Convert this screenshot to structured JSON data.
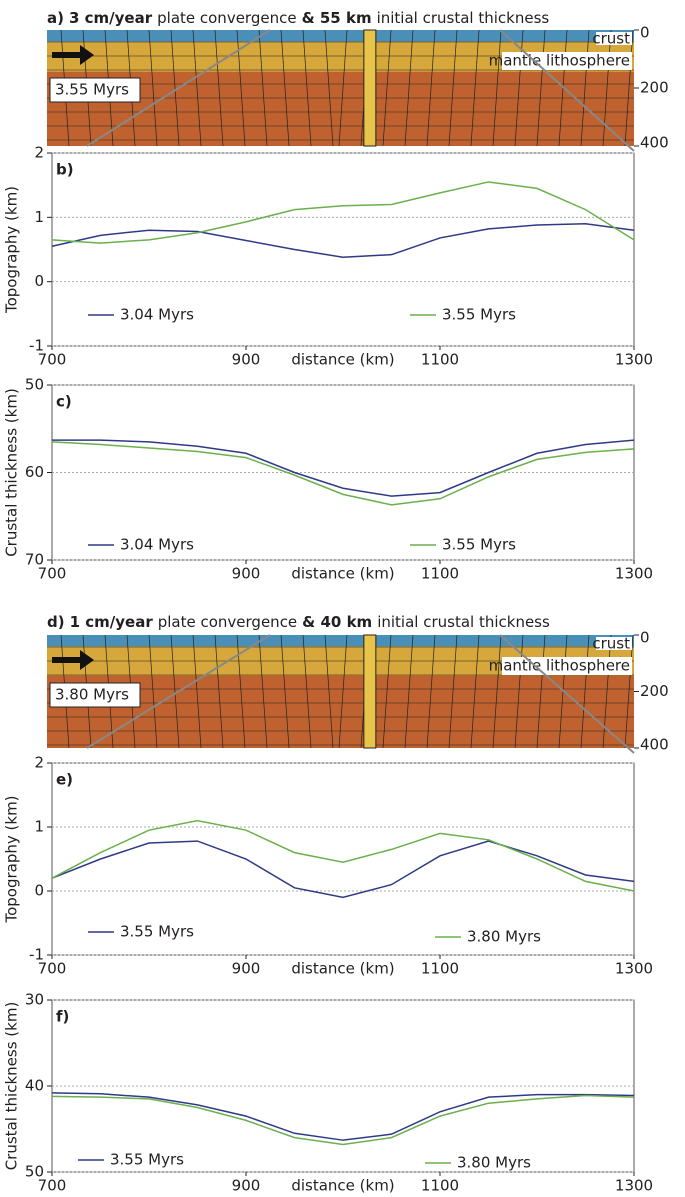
{
  "chart_data": [
    {
      "type": "section",
      "title": [
        "a)",
        "3 cm/year",
        "plate convergence",
        "& 55 km",
        "initial crustal thickness"
      ],
      "labels": [
        "crust",
        "mantle lithosphere"
      ],
      "time": "3.55 Myrs",
      "ylim": [
        0,
        400
      ],
      "yticks": [
        0,
        200,
        400
      ],
      "y_inverted": true
    },
    {
      "type": "line",
      "panel": "b)",
      "ylabel": "Topography (km)",
      "xlabel": "distance (km)",
      "x": [
        700,
        750,
        800,
        850,
        900,
        950,
        1000,
        1050,
        1100,
        1150,
        1200,
        1250,
        1300
      ],
      "series": [
        {
          "name": "3.04 Myrs",
          "color": "#2e3a87",
          "values": [
            0.55,
            0.72,
            0.8,
            0.78,
            0.64,
            0.5,
            0.38,
            0.42,
            0.68,
            0.82,
            0.88,
            0.9,
            0.8
          ]
        },
        {
          "name": "3.55 Myrs",
          "color": "#6ab04c",
          "values": [
            0.65,
            0.6,
            0.65,
            0.76,
            0.93,
            1.12,
            1.18,
            1.2,
            1.38,
            1.55,
            1.45,
            1.12,
            0.65
          ]
        }
      ],
      "xlim": [
        700,
        1300
      ],
      "xticks": [
        700,
        900,
        1100,
        1300
      ],
      "ylim": [
        -1,
        2
      ],
      "yticks": [
        -1,
        0,
        1,
        2
      ],
      "grid": true
    },
    {
      "type": "line",
      "panel": "c)",
      "ylabel": "Crustal thickness (km)",
      "xlabel": "distance (km)",
      "x": [
        700,
        750,
        800,
        850,
        900,
        950,
        1000,
        1050,
        1100,
        1150,
        1200,
        1250,
        1300
      ],
      "series": [
        {
          "name": "3.04 Myrs",
          "color": "#2e3a87",
          "values": [
            56.3,
            56.3,
            56.5,
            57,
            57.8,
            60,
            61.8,
            62.7,
            62.3,
            60,
            57.8,
            56.8,
            56.3
          ]
        },
        {
          "name": "3.55 Myrs",
          "color": "#6ab04c",
          "values": [
            56.5,
            56.8,
            57.2,
            57.6,
            58.3,
            60.3,
            62.5,
            63.7,
            63,
            60.5,
            58.5,
            57.7,
            57.3
          ]
        }
      ],
      "xlim": [
        700,
        1300
      ],
      "xticks": [
        700,
        900,
        1100,
        1300
      ],
      "ylim": [
        50,
        70
      ],
      "yticks": [
        50,
        60,
        70
      ],
      "y_inverted": true,
      "grid": true
    },
    {
      "type": "section",
      "title": [
        "d)",
        "1 cm/year",
        "plate convergence",
        "& 40 km",
        "initial crustal thickness"
      ],
      "labels": [
        "crust",
        "mantle lithosphere"
      ],
      "time": "3.80 Myrs",
      "ylim": [
        0,
        400
      ],
      "yticks": [
        0,
        200,
        400
      ],
      "y_inverted": true
    },
    {
      "type": "line",
      "panel": "e)",
      "ylabel": "Topography (km)",
      "xlabel": "distance (km)",
      "x": [
        700,
        750,
        800,
        850,
        900,
        950,
        1000,
        1050,
        1100,
        1150,
        1200,
        1250,
        1300
      ],
      "series": [
        {
          "name": "3.55 Myrs",
          "color": "#2e3a87",
          "values": [
            0.2,
            0.5,
            0.75,
            0.78,
            0.5,
            0.05,
            -0.1,
            0.1,
            0.55,
            0.78,
            0.55,
            0.25,
            0.15
          ]
        },
        {
          "name": "3.80 Myrs",
          "color": "#6ab04c",
          "values": [
            0.2,
            0.6,
            0.95,
            1.1,
            0.95,
            0.6,
            0.45,
            0.65,
            0.9,
            0.8,
            0.5,
            0.15,
            0
          ]
        }
      ],
      "xlim": [
        700,
        1300
      ],
      "xticks": [
        700,
        900,
        1100,
        1300
      ],
      "ylim": [
        -1,
        2
      ],
      "yticks": [
        -1,
        0,
        1,
        2
      ],
      "grid": true
    },
    {
      "type": "line",
      "panel": "f)",
      "ylabel": "Crustal thickness (km)",
      "xlabel": "distance (km)",
      "x": [
        700,
        750,
        800,
        850,
        900,
        950,
        1000,
        1050,
        1100,
        1150,
        1200,
        1250,
        1300
      ],
      "series": [
        {
          "name": "3.55 Myrs",
          "color": "#2e3a87",
          "values": [
            40.8,
            40.9,
            41.3,
            42.2,
            43.5,
            45.5,
            46.3,
            45.6,
            43,
            41.3,
            41,
            41,
            41.1
          ]
        },
        {
          "name": "3.80 Myrs",
          "color": "#6ab04c",
          "values": [
            41.2,
            41.3,
            41.5,
            42.5,
            44,
            46,
            46.8,
            46,
            43.5,
            42,
            41.5,
            41.1,
            41.3
          ]
        }
      ],
      "xlim": [
        700,
        1300
      ],
      "xticks": [
        700,
        900,
        1100,
        1300
      ],
      "ylim": [
        30,
        50
      ],
      "yticks": [
        30,
        40,
        50
      ],
      "y_inverted": true,
      "grid": true
    }
  ]
}
